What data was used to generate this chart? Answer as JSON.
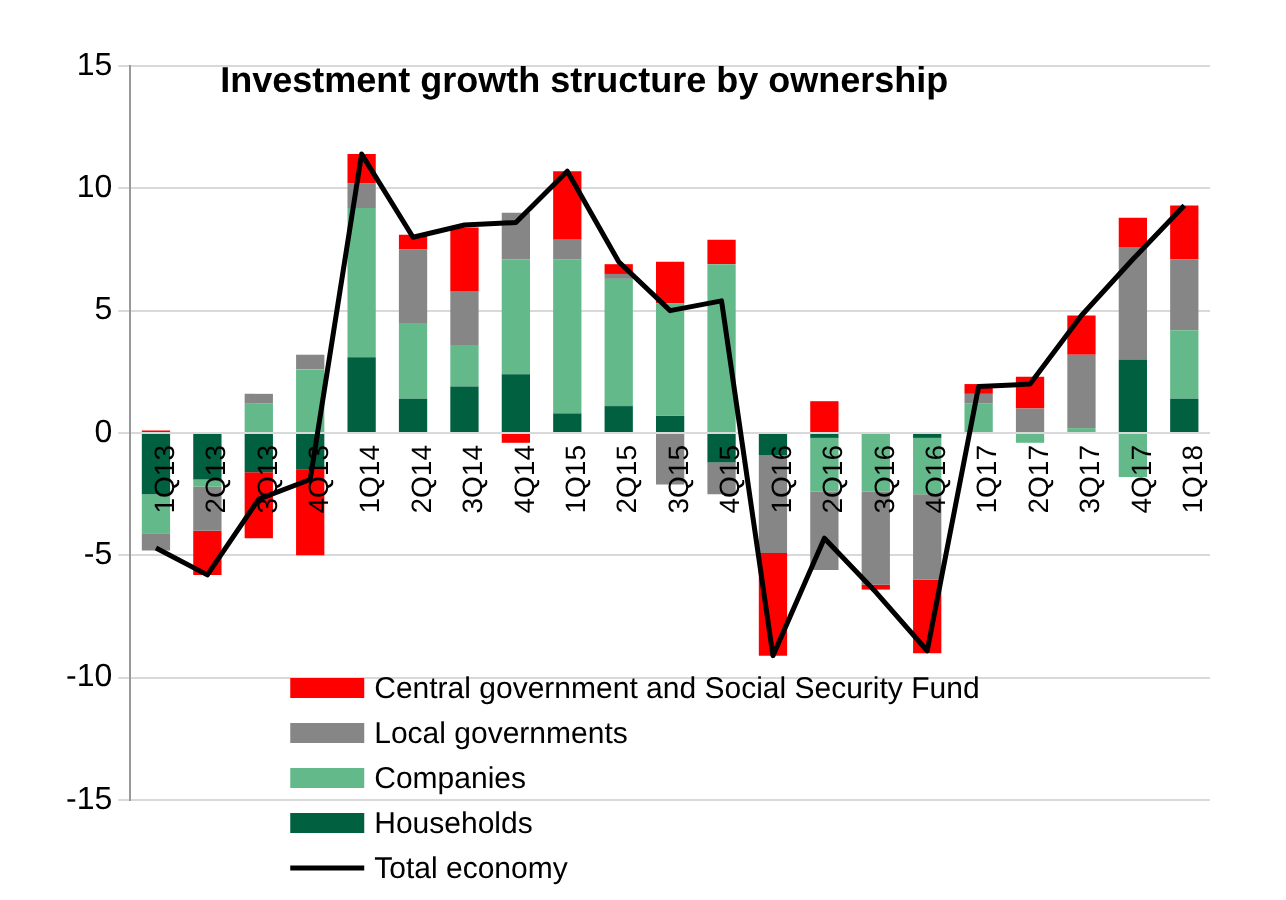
{
  "chart_data": {
    "type": "bar",
    "title": "Investment growth structure by ownership",
    "stacked": true,
    "legend": "bottom left",
    "grid": "y",
    "categories": [
      "1Q13",
      "2Q13",
      "3Q13",
      "4Q13",
      "1Q14",
      "2Q14",
      "3Q14",
      "4Q14",
      "1Q15",
      "2Q15",
      "3Q15",
      "4Q15",
      "1Q16",
      "2Q16",
      "3Q16",
      "4Q16",
      "1Q17",
      "2Q17",
      "3Q17",
      "4Q17",
      "1Q18"
    ],
    "ylim": [
      -15,
      15
    ],
    "yticks": [
      -15,
      -10,
      -5,
      0,
      5,
      10,
      15
    ],
    "series": [
      {
        "name": "Households",
        "color": "#006040",
        "values": [
          -2.5,
          -1.9,
          -1.6,
          -1.5,
          3.1,
          1.4,
          1.9,
          2.4,
          0.8,
          1.1,
          0.7,
          -1.2,
          -0.9,
          -0.2,
          null,
          -0.2,
          null,
          null,
          null,
          3.0,
          1.4
        ]
      },
      {
        "name": "Companies",
        "color": "#63b98a",
        "values": [
          -1.6,
          -0.3,
          1.2,
          2.6,
          6.1,
          3.1,
          1.7,
          4.7,
          6.3,
          5.2,
          4.6,
          6.9,
          null,
          -2.2,
          -2.4,
          -2.3,
          1.2,
          -0.4,
          0.2,
          -1.8,
          2.8
        ]
      },
      {
        "name": "Local governments",
        "color": "#868686",
        "values": [
          -0.7,
          -1.8,
          0.4,
          0.6,
          1.0,
          3.0,
          2.2,
          1.9,
          0.8,
          0.2,
          -2.1,
          -1.3,
          -4.0,
          -3.2,
          -3.8,
          -3.5,
          0.4,
          1.0,
          3.0,
          4.6,
          2.9
        ]
      },
      {
        "name": "Central government and Social Security Fund",
        "color": "#ff0000",
        "values": [
          0.1,
          -1.8,
          -2.7,
          -3.5,
          1.2,
          0.6,
          2.6,
          -0.4,
          2.8,
          0.4,
          1.7,
          1.0,
          -4.2,
          1.3,
          -0.2,
          -3.0,
          0.4,
          1.3,
          1.6,
          1.2,
          2.2
        ]
      },
      {
        "name": "Total economy",
        "type": "line",
        "color": "#000000",
        "values": [
          -4.7,
          -5.8,
          -2.7,
          -1.9,
          11.4,
          8.0,
          8.5,
          8.6,
          10.7,
          7.0,
          5.0,
          5.4,
          -9.1,
          -4.3,
          -6.5,
          -8.9,
          1.9,
          2.0,
          4.8,
          7.1,
          9.3
        ]
      }
    ]
  }
}
